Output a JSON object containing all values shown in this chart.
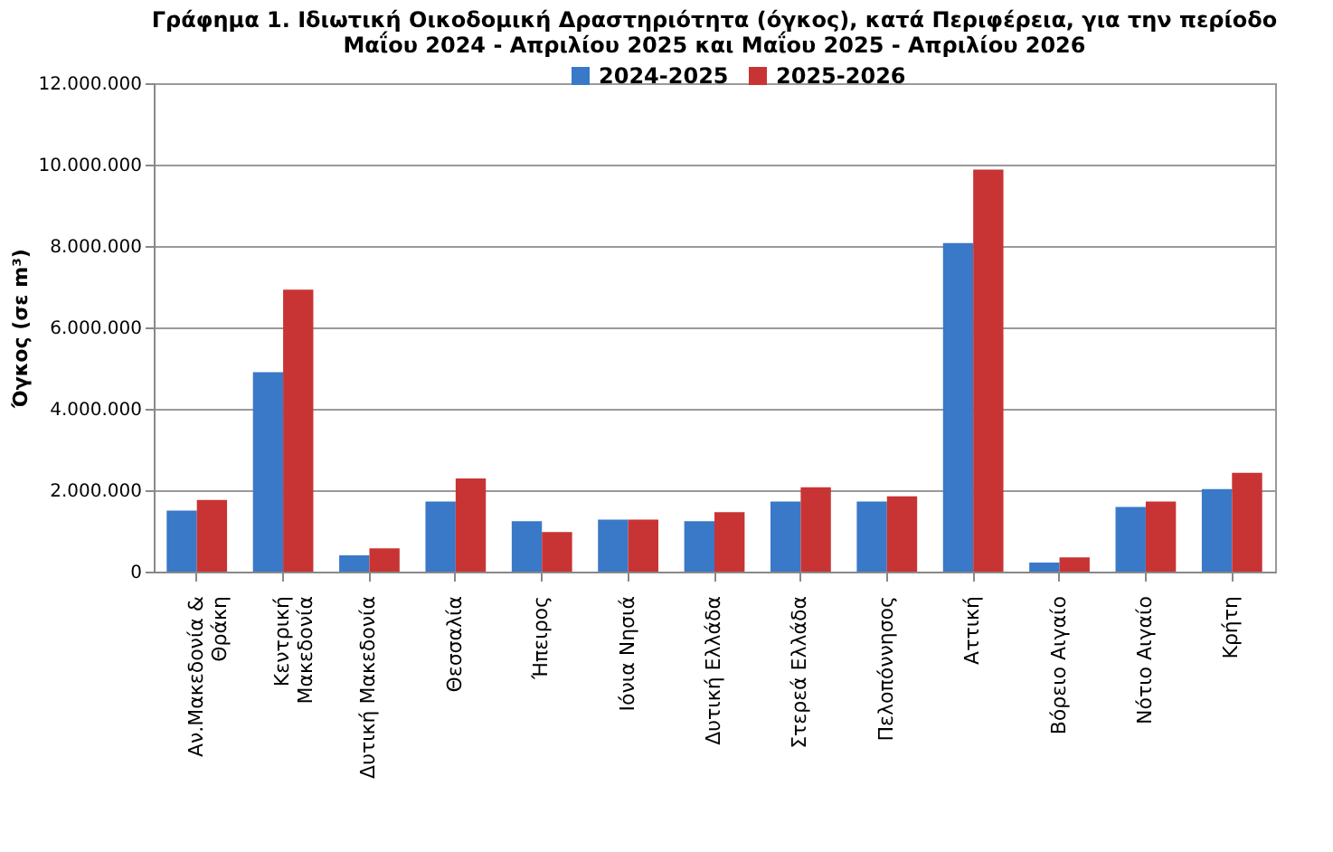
{
  "chart_data": {
    "type": "bar",
    "title": [
      "Γράφημα 1.  Ιδιωτική Οικοδομική Δραστηριότητα (όγκος), κατά Περιφέρεια, για την περίοδο",
      "Μαΐου 2024 - Απριλίου 2025 και Μαΐου 2025 - Απριλίου 2026"
    ],
    "ylabel": "Όγκος (σε m³)",
    "categories": [
      "Αν.Μακεδονία &\nΘράκη",
      "Κεντρική\nΜακεδονία",
      "Δυτική Μακεδονία",
      "Θεσσαλία",
      "Ήπειρος",
      "Ιόνια Νησιά",
      "Δυτική Ελλάδα",
      "Στερεά Ελλάδα",
      "Πελοπόννησος",
      "Αττική",
      "Βόρειο Αιγαίο",
      "Νότιο Αιγαίο",
      "Κρήτη"
    ],
    "series": [
      {
        "name": "2024-2025",
        "color": "#3a78c8",
        "values": [
          1500000,
          4900000,
          400000,
          1720000,
          1240000,
          1280000,
          1240000,
          1720000,
          1720000,
          8070000,
          220000,
          1590000,
          2030000
        ]
      },
      {
        "name": "2025-2026",
        "color": "#c83434",
        "values": [
          1760000,
          6930000,
          570000,
          2290000,
          970000,
          1280000,
          1460000,
          2070000,
          1850000,
          9880000,
          350000,
          1720000,
          2430000
        ]
      }
    ],
    "ylim": [
      0,
      12000000
    ],
    "yticks": [
      0,
      {
        "value": 2000000,
        "label": "2.000.000"
      },
      {
        "value": 4000000,
        "label": "4.000.000"
      },
      {
        "value": 6000000,
        "label": "6.000.000"
      },
      {
        "value": 8000000,
        "label": "8.000.000"
      },
      {
        "value": 10000000,
        "label": "10.000.000"
      },
      {
        "value": 12000000,
        "label": "12.000.000"
      }
    ],
    "grid": "y",
    "legend": "top"
  }
}
